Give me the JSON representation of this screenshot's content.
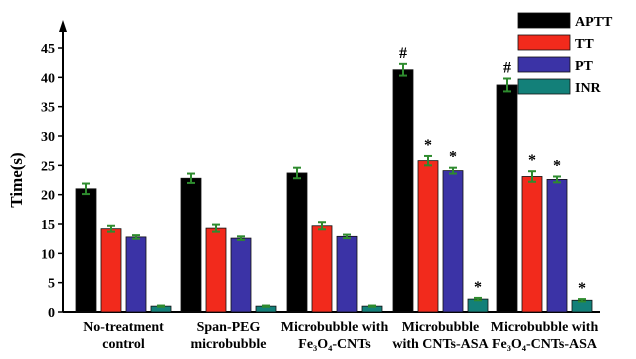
{
  "chart_data": {
    "type": "bar",
    "ylabel": "Time(s)",
    "xlabel": "",
    "ylim": [
      0,
      45
    ],
    "yticks": [
      0,
      5,
      10,
      15,
      20,
      25,
      30,
      35,
      40,
      45
    ],
    "categories": [
      [
        "No-treatment",
        "control"
      ],
      [
        "Span-PEG",
        "microbubble"
      ],
      [
        "Microbubble with",
        "Fe₃O₄-CNTs"
      ],
      [
        "Microbubble",
        "with CNTs-ASA"
      ],
      [
        "Microbubble with",
        "Fe₃O₄-CNTs-ASA"
      ]
    ],
    "series": [
      {
        "name": "APTT",
        "color": "#000000",
        "values": [
          21.0,
          22.8,
          23.7,
          41.3,
          38.7
        ],
        "errors": [
          0.9,
          0.8,
          0.9,
          1.0,
          1.1
        ]
      },
      {
        "name": "TT",
        "color": "#f22a1c",
        "values": [
          14.2,
          14.3,
          14.7,
          25.8,
          23.1
        ],
        "errors": [
          0.5,
          0.6,
          0.6,
          0.8,
          0.9
        ]
      },
      {
        "name": "PT",
        "color": "#3b33a6",
        "values": [
          12.8,
          12.6,
          12.9,
          24.1,
          22.6
        ],
        "errors": [
          0.3,
          0.3,
          0.3,
          0.5,
          0.5
        ]
      },
      {
        "name": "INR",
        "color": "#138079",
        "values": [
          1.0,
          1.0,
          1.0,
          2.2,
          2.0
        ],
        "errors": [
          0.1,
          0.1,
          0.1,
          0.2,
          0.2
        ]
      }
    ],
    "annotations": [
      {
        "category": 3,
        "series": 0,
        "symbol": "#"
      },
      {
        "category": 3,
        "series": 1,
        "symbol": "*"
      },
      {
        "category": 3,
        "series": 2,
        "symbol": "*"
      },
      {
        "category": 3,
        "series": 3,
        "symbol": "*"
      },
      {
        "category": 4,
        "series": 0,
        "symbol": "#"
      },
      {
        "category": 4,
        "series": 1,
        "symbol": "*"
      },
      {
        "category": 4,
        "series": 2,
        "symbol": "*"
      },
      {
        "category": 4,
        "series": 3,
        "symbol": "*"
      }
    ],
    "legend": {
      "placement": "top-right"
    },
    "grid": false,
    "error_bar_color": "#2e8b2e"
  }
}
